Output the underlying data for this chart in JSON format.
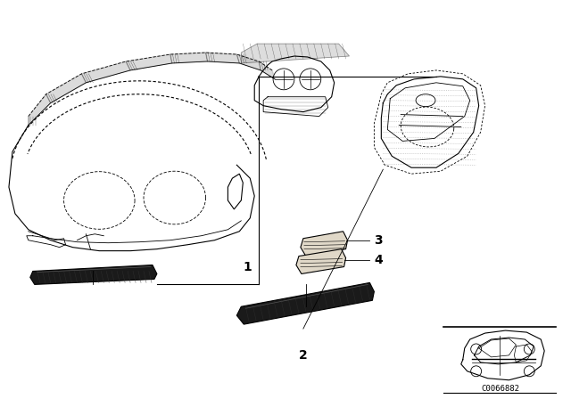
{
  "background_color": "#ffffff",
  "line_color": "#000000",
  "part_number": "C0066882",
  "fig_width": 6.4,
  "fig_height": 4.48,
  "label_fontsize": 10,
  "partnum_fontsize": 6.5
}
